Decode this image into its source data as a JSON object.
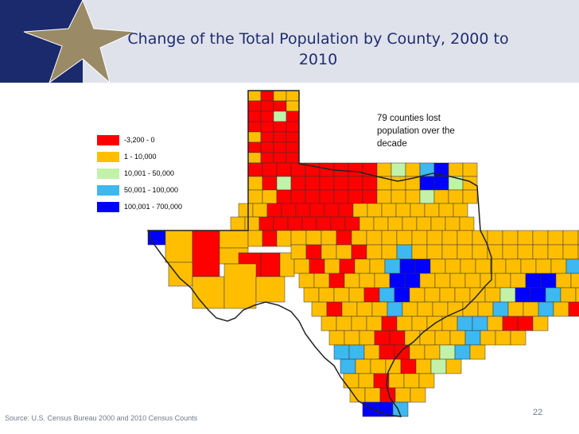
{
  "slide": {
    "title": "Change of the Total Population by County, 2000 to 2010",
    "title_line1": "Change of the Total Population by County, 2000 to",
    "title_line2": "2010",
    "annotation": "79 counties lost population over the decade",
    "annotation_line1": "79 counties lost",
    "annotation_line2": "population over the",
    "annotation_line3": "decade",
    "source": "Source: U.S. Census Bureau 2000  and  2010 Census Counts",
    "page_number": "22"
  },
  "colors": {
    "header_bg": "#dfe2ea",
    "logo_bg": "#1b2a6d",
    "star": "#9a8a66",
    "title_text": "#1f2d73",
    "county_border": "#333333"
  },
  "legend": {
    "items": [
      {
        "label": "-3,200 - 0",
        "color": "#ff0000"
      },
      {
        "label": "1 - 10,000",
        "color": "#ffbf00"
      },
      {
        "label": "10,001 - 50,000",
        "color": "#c2f2a8"
      },
      {
        "label": "50,001 - 100,000",
        "color": "#3db8f0"
      },
      {
        "label": "100,001 - 700,000",
        "color": "#0000ff"
      }
    ]
  }
}
